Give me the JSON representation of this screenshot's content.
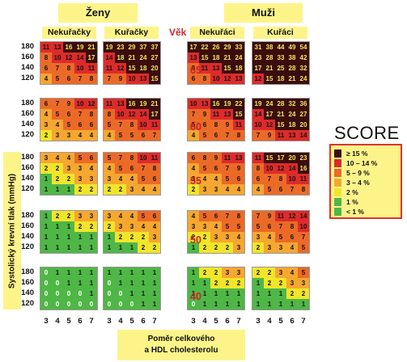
{
  "headers": {
    "women": "Ženy",
    "men": "Muži"
  },
  "groups": {
    "women_nonsmokers": "Nekuřačky",
    "women_smokers": "Kuřačky",
    "men_nonsmokers": "Nekuřáci",
    "men_smokers": "Kuřáci"
  },
  "age_header": "Věk",
  "ages": [
    "65",
    "60",
    "55",
    "50",
    "40"
  ],
  "bp_values": [
    "180",
    "160",
    "140",
    "120"
  ],
  "cholesterol_values": [
    "3",
    "4",
    "5",
    "6",
    "7"
  ],
  "y_axis_label": "Systolický krevní tlak (mmHg)",
  "x_axis_label": {
    "line1": "Poměr celkového",
    "line2": "a HDL cholesterolu"
  },
  "legend": {
    "title": "SCORE",
    "items": [
      {
        "label": "≥ 15 %",
        "color": "#3b0d0e"
      },
      {
        "label": "10 – 14 %",
        "color": "#dd2b2b"
      },
      {
        "label": "5 – 9 %",
        "color": "#ec6a27"
      },
      {
        "label": "3 – 4 %",
        "color": "#f6a72f"
      },
      {
        "label": "2 %",
        "color": "#f1e529"
      },
      {
        "label": "1 %",
        "color": "#4fb746"
      },
      {
        "label": "< 1 %",
        "color": "#4fb746"
      }
    ]
  },
  "scores": {
    "women_nonsmokers": [
      [
        [
          11,
          13,
          16,
          19,
          21
        ],
        [
          8,
          10,
          12,
          14,
          17
        ],
        [
          6,
          7,
          8,
          10,
          11
        ],
        [
          4,
          5,
          6,
          7,
          8
        ]
      ],
      [
        [
          6,
          7,
          9,
          10,
          12
        ],
        [
          4,
          5,
          6,
          7,
          8
        ],
        [
          3,
          4,
          5,
          6,
          6
        ],
        [
          2,
          3,
          3,
          4,
          4
        ]
      ],
      [
        [
          3,
          4,
          4,
          5,
          6
        ],
        [
          2,
          2,
          3,
          3,
          4
        ],
        [
          1,
          2,
          2,
          3,
          3
        ],
        [
          1,
          1,
          1,
          2,
          2
        ]
      ],
      [
        [
          1,
          2,
          2,
          3,
          3
        ],
        [
          1,
          1,
          1,
          2,
          2
        ],
        [
          1,
          1,
          1,
          1,
          1
        ],
        [
          1,
          1,
          1,
          1,
          1
        ]
      ],
      [
        [
          0,
          1,
          1,
          1,
          1
        ],
        [
          0,
          0,
          1,
          1,
          1
        ],
        [
          0,
          0,
          0,
          0,
          1
        ],
        [
          0,
          0,
          0,
          0,
          0
        ]
      ]
    ],
    "women_smokers": [
      [
        [
          19,
          23,
          29,
          37,
          37
        ],
        [
          14,
          18,
          21,
          24,
          27
        ],
        [
          11,
          12,
          15,
          18,
          20
        ],
        [
          7,
          9,
          10,
          13,
          15
        ]
      ],
      [
        [
          11,
          13,
          16,
          19,
          21
        ],
        [
          8,
          10,
          12,
          14,
          17
        ],
        [
          5,
          7,
          8,
          10,
          11
        ],
        [
          4,
          5,
          5,
          6,
          7
        ]
      ],
      [
        [
          5,
          7,
          8,
          10,
          11
        ],
        [
          4,
          5,
          6,
          7,
          8
        ],
        [
          3,
          4,
          4,
          5,
          6
        ],
        [
          2,
          2,
          3,
          4,
          4
        ]
      ],
      [
        [
          3,
          4,
          4,
          5,
          6
        ],
        [
          2,
          3,
          3,
          4,
          4
        ],
        [
          1,
          2,
          2,
          2,
          3
        ],
        [
          1,
          1,
          1,
          2,
          2
        ]
      ],
      [
        [
          1,
          1,
          1,
          1,
          1
        ],
        [
          0,
          1,
          1,
          1,
          1
        ],
        [
          0,
          0,
          1,
          1,
          1
        ],
        [
          0,
          0,
          0,
          1,
          1
        ]
      ]
    ],
    "men_nonsmokers": [
      [
        [
          17,
          22,
          26,
          29,
          33
        ],
        [
          13,
          15,
          18,
          21,
          24
        ],
        [
          9,
          11,
          13,
          15,
          18
        ],
        [
          6,
          8,
          10,
          12,
          13
        ]
      ],
      [
        [
          10,
          13,
          16,
          19,
          22
        ],
        [
          7,
          9,
          11,
          13,
          15
        ],
        [
          5,
          6,
          8,
          9,
          11
        ],
        [
          4,
          5,
          6,
          7,
          8
        ]
      ],
      [
        [
          6,
          8,
          9,
          11,
          13
        ],
        [
          4,
          5,
          6,
          7,
          9
        ],
        [
          3,
          4,
          4,
          5,
          6
        ],
        [
          2,
          3,
          3,
          4,
          4
        ]
      ],
      [
        [
          4,
          5,
          6,
          7,
          8
        ],
        [
          3,
          3,
          4,
          5,
          5
        ],
        [
          2,
          2,
          3,
          3,
          4
        ],
        [
          1,
          2,
          2,
          2,
          3
        ]
      ],
      [
        [
          1,
          2,
          2,
          3,
          3
        ],
        [
          1,
          1,
          2,
          2,
          2
        ],
        [
          1,
          1,
          1,
          1,
          1
        ],
        [
          0,
          1,
          1,
          1,
          1
        ]
      ]
    ],
    "men_smokers": [
      [
        [
          31,
          38,
          44,
          49,
          54
        ],
        [
          23,
          28,
          33,
          38,
          42
        ],
        [
          17,
          21,
          25,
          28,
          32
        ],
        [
          12,
          15,
          18,
          21,
          24
        ]
      ],
      [
        [
          19,
          24,
          28,
          32,
          36
        ],
        [
          14,
          17,
          21,
          24,
          27
        ],
        [
          10,
          12,
          15,
          18,
          20
        ],
        [
          7,
          9,
          11,
          13,
          14
        ]
      ],
      [
        [
          11,
          15,
          17,
          20,
          23
        ],
        [
          8,
          10,
          12,
          14,
          16
        ],
        [
          6,
          7,
          8,
          10,
          11
        ],
        [
          4,
          5,
          6,
          7,
          8
        ]
      ],
      [
        [
          7,
          9,
          11,
          12,
          14
        ],
        [
          5,
          6,
          7,
          8,
          10
        ],
        [
          3,
          4,
          5,
          6,
          7
        ],
        [
          2,
          3,
          3,
          4,
          5
        ]
      ],
      [
        [
          2,
          2,
          3,
          4,
          5
        ],
        [
          1,
          2,
          2,
          3,
          3
        ],
        [
          1,
          1,
          1,
          2,
          2
        ],
        [
          1,
          1,
          1,
          1,
          1
        ]
      ]
    ]
  }
}
